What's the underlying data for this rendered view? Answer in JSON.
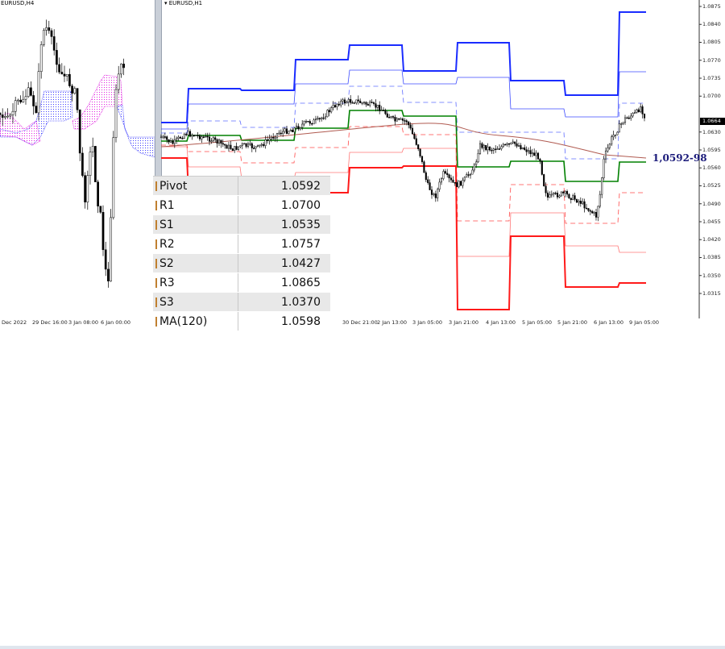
{
  "left_chart": {
    "title": "EURUSD,H4",
    "time_labels": [
      "Dec 2022",
      "29 Dec 16:00",
      "3 Jan 08:00",
      "6 Jan 00:00"
    ]
  },
  "main_chart": {
    "title": "EURUSD,H1",
    "price_labels": [
      "1.0875",
      "1.0840",
      "1.0805",
      "1.0770",
      "1.0735",
      "1.0700",
      "1.0630",
      "1.0595",
      "1.0560",
      "1.0525",
      "1.0490",
      "1.0455",
      "1.0420",
      "1.0385",
      "1.0350",
      "1.0315"
    ],
    "current_price": "1.0664",
    "time_labels": [
      "30 Dec 21:00",
      "2 Jan 13:00",
      "3 Jan 05:00",
      "3 Jan 21:00",
      "4 Jan 13:00",
      "5 Jan 05:00",
      "5 Jan 21:00",
      "6 Jan 13:00",
      "9 Jan 05:00"
    ],
    "annotation": "1,0592-98",
    "colors": {
      "resistance": "#1a2cff",
      "pivot": "#008000",
      "support": "#ff1a1a",
      "ma": "#b05a50",
      "cloud_up": "#4040ff",
      "cloud_down": "#e020e0"
    }
  },
  "levels_table": [
    {
      "name": "Pivot",
      "value": "1.0592"
    },
    {
      "name": "R1",
      "value": "1.0700"
    },
    {
      "name": "S1",
      "value": "1.0535"
    },
    {
      "name": "R2",
      "value": "1.0757"
    },
    {
      "name": "S2",
      "value": "1.0427"
    },
    {
      "name": "R3",
      "value": "1.0865"
    },
    {
      "name": "S3",
      "value": "1.0370"
    },
    {
      "name": "MA(120)",
      "value": "1.0598"
    }
  ]
}
